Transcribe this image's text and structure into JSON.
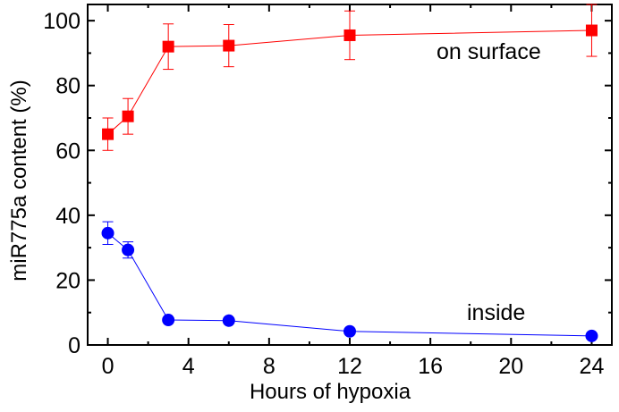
{
  "chart_data": {
    "type": "line",
    "title": "",
    "xlabel": "Hours of hypoxia",
    "ylabel": "miR775a content (%)",
    "xlim": [
      -1,
      25
    ],
    "ylim": [
      0,
      105
    ],
    "xticks": [
      0,
      4,
      8,
      12,
      16,
      20,
      24
    ],
    "yticks": [
      0,
      20,
      40,
      60,
      80,
      100
    ],
    "grid": false,
    "legend": "none",
    "x": [
      0,
      1,
      3,
      6,
      12,
      24
    ],
    "series": [
      {
        "name": "on surface",
        "color": "#ff0000",
        "marker": "square",
        "values": [
          65,
          70.5,
          92,
          92.3,
          95.5,
          97
        ],
        "error": [
          5,
          5.5,
          7,
          6.5,
          7.5,
          8
        ]
      },
      {
        "name": "inside",
        "color": "#0000ff",
        "marker": "circle",
        "values": [
          34.5,
          29.3,
          7.7,
          7.5,
          4.2,
          2.8
        ],
        "error": [
          3.5,
          2.5,
          0.6,
          0.6,
          0.5,
          0.4
        ]
      }
    ]
  }
}
